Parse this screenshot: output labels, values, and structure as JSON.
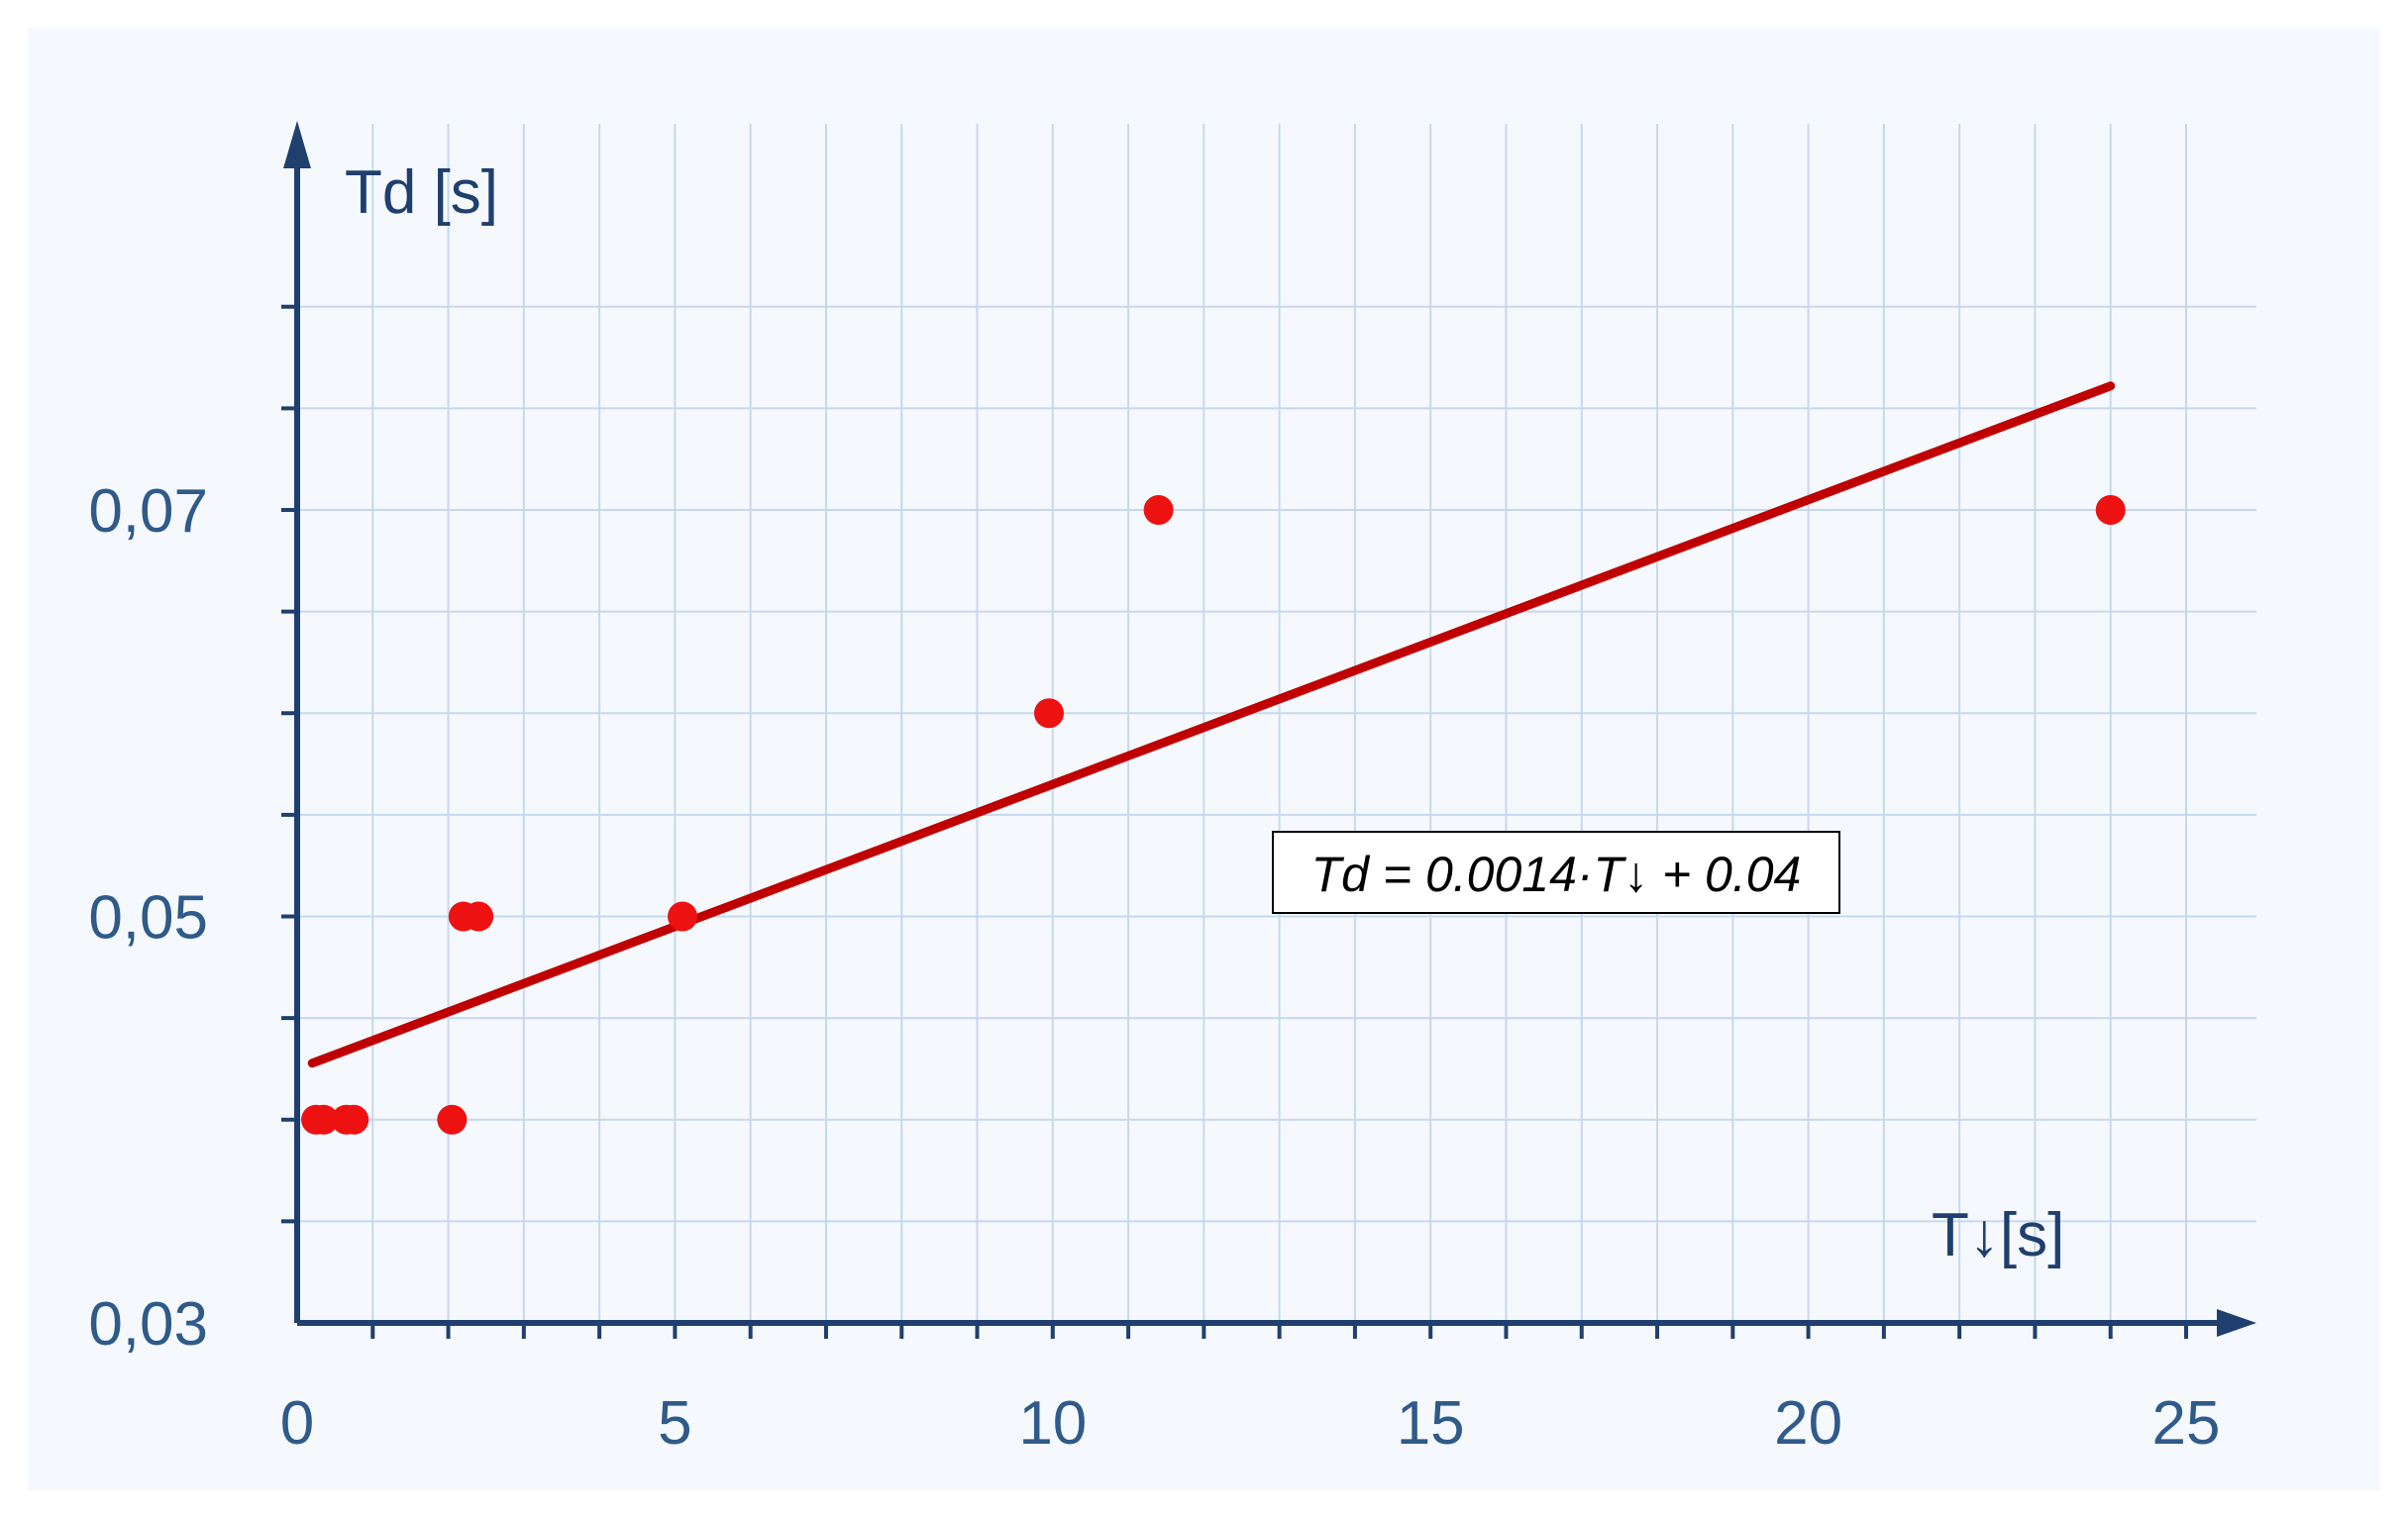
{
  "chart_data": {
    "type": "scatter",
    "title": "",
    "xlabel": "T↓[s]",
    "ylabel": "Td [s]",
    "xlim": [
      0,
      25
    ],
    "ylim": [
      0.03,
      0.08
    ],
    "x_ticks": [
      0,
      5,
      10,
      15,
      20,
      25
    ],
    "x_tick_labels": [
      "0",
      "5",
      "10",
      "15",
      "20",
      "25"
    ],
    "y_ticks": [
      0.03,
      0.05,
      0.07
    ],
    "y_tick_labels": [
      "0,03",
      "0,05",
      "0,07"
    ],
    "x_minor_step": 1,
    "y_minor_step": 0.005,
    "grid": true,
    "series": [
      {
        "points": [
          {
            "x": 0.25,
            "y": 0.04
          },
          {
            "x": 0.35,
            "y": 0.04
          },
          {
            "x": 0.65,
            "y": 0.04
          },
          {
            "x": 0.75,
            "y": 0.04
          },
          {
            "x": 2.05,
            "y": 0.04
          },
          {
            "x": 2.2,
            "y": 0.05
          },
          {
            "x": 2.4,
            "y": 0.05
          },
          {
            "x": 5.1,
            "y": 0.05
          },
          {
            "x": 9.95,
            "y": 0.06
          },
          {
            "x": 11.4,
            "y": 0.07
          },
          {
            "x": 24.0,
            "y": 0.07
          }
        ],
        "color": "#ee1111"
      }
    ],
    "trendline": {
      "slope": 0.0014,
      "intercept": 0.0425,
      "x_range": [
        0.2,
        24.0
      ],
      "color": "#c00000"
    },
    "annotation": {
      "text": "Td = 0.0014·T↓ + 0.04"
    },
    "colors": {
      "background": "#f5f9fd",
      "grid": "#c7d8ee",
      "axis": "#1f3f6e",
      "tick_label": "#2f5a8a"
    }
  }
}
